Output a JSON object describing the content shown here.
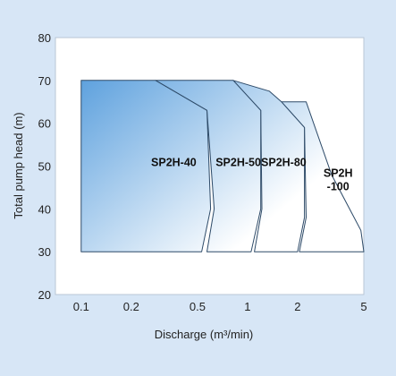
{
  "chart_data": {
    "type": "area",
    "title": "",
    "xlabel": "Discharge (m³/min)",
    "ylabel": "Total pump head (m)",
    "x_scale": "log",
    "xlim": [
      0.07,
      5
    ],
    "ylim": [
      20,
      80
    ],
    "x_ticks": [
      0.1,
      0.2,
      0.5,
      1,
      2,
      5
    ],
    "x_tick_labels": [
      "0.1",
      "0.2",
      "0.5",
      "1",
      "2",
      "5"
    ],
    "y_ticks": [
      20,
      30,
      40,
      50,
      60,
      70,
      80
    ],
    "y_tick_labels": [
      "20",
      "30",
      "40",
      "50",
      "60",
      "70",
      "80"
    ],
    "grid": false,
    "legend": "none",
    "series": [
      {
        "name": "SP2H-40",
        "label_lines": [
          "SP2H-40"
        ],
        "points": [
          [
            0.1,
            30
          ],
          [
            0.1,
            70
          ],
          [
            0.28,
            70
          ],
          [
            0.57,
            63
          ],
          [
            0.6,
            40
          ],
          [
            0.53,
            30
          ]
        ]
      },
      {
        "name": "SP2H-50",
        "label_lines": [
          "SP2H-50"
        ],
        "points": [
          [
            0.57,
            30
          ],
          [
            0.63,
            40
          ],
          [
            0.57,
            63
          ],
          [
            0.28,
            70
          ],
          [
            0.82,
            70
          ],
          [
            1.2,
            63
          ],
          [
            1.2,
            40
          ],
          [
            1.05,
            30
          ]
        ]
      },
      {
        "name": "SP2H-80",
        "label_lines": [
          "SP2H-80"
        ],
        "points": [
          [
            1.1,
            30
          ],
          [
            1.22,
            40
          ],
          [
            1.2,
            63
          ],
          [
            0.82,
            70
          ],
          [
            1.35,
            67.5
          ],
          [
            1.6,
            65
          ],
          [
            2.2,
            59
          ],
          [
            2.2,
            38
          ],
          [
            2.0,
            30
          ]
        ]
      },
      {
        "name": "SP2H-100",
        "label_lines": [
          "SP2H",
          "-100"
        ],
        "points": [
          [
            2.05,
            30
          ],
          [
            2.25,
            38
          ],
          [
            2.2,
            59
          ],
          [
            1.6,
            65
          ],
          [
            2.25,
            65
          ],
          [
            3.2,
            48
          ],
          [
            4.8,
            35
          ],
          [
            5,
            30
          ]
        ]
      }
    ],
    "colors": {
      "background": "#d7e6f6",
      "plot_background": "#ffffff",
      "fill_dark": "#5a9fdd",
      "fill_light": "#ffffff",
      "outline": "#2d4a68"
    }
  }
}
